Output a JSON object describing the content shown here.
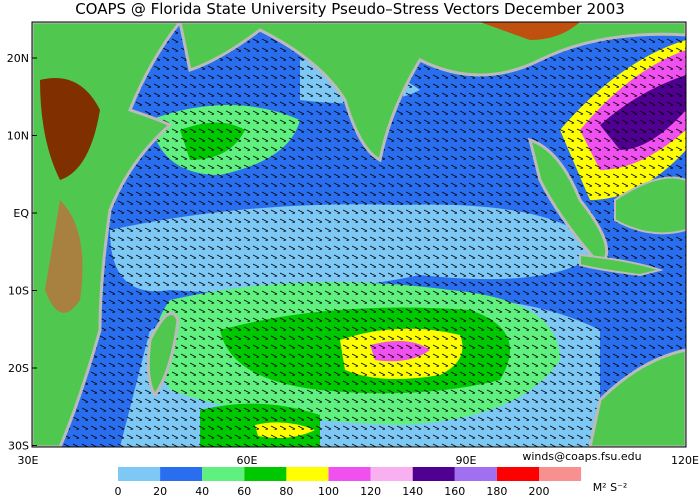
{
  "title": "COAPS @ Florida State University Pseudo–Stress Vectors December 2003",
  "map": {
    "lat_labels": [
      "20N",
      "10N",
      "EQ",
      "10S",
      "20S",
      "30S"
    ],
    "lon_labels": [
      "30E",
      "60E",
      "90E",
      "120E"
    ]
  },
  "credit": "winds@coaps.fsu.edu",
  "colorbar": {
    "ticks": [
      0,
      20,
      40,
      60,
      80,
      100,
      120,
      140,
      160,
      180,
      200
    ],
    "colors": [
      "#7ec8f5",
      "#2a6ef0",
      "#60f080",
      "#00c800",
      "#ffff00",
      "#f050f0",
      "#f8b0f0",
      "#500090",
      "#a070f0",
      "#ff0000",
      "#f89090"
    ],
    "unit": "M² S⁻²"
  }
}
